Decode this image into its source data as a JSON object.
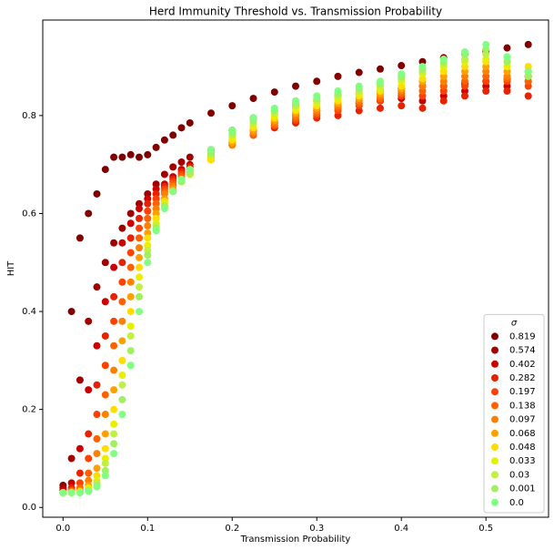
{
  "chart_data": {
    "type": "scatter",
    "title": "Herd Immunity Threshold vs. Transmission Probability",
    "x_label": "Transmission Probability",
    "y_label": "HIT",
    "legend_title": "σ",
    "legend_position": "lower right",
    "xlim": [
      -0.024,
      0.574
    ],
    "ylim": [
      -0.02,
      0.995
    ],
    "xticks": [
      {
        "value": 0,
        "label": "0.0"
      },
      0.1,
      0.2,
      0.3,
      0.4,
      0.5
    ],
    "yticks": [
      {
        "value": 0,
        "label": "0.0"
      },
      0.2,
      0.4,
      0.6,
      0.8
    ],
    "x": [
      0,
      0.01,
      0.02,
      0.03,
      0.04,
      0.05,
      0.06,
      0.07,
      0.08,
      0.09,
      0.1,
      0.11,
      0.12,
      0.13,
      0.14,
      0.15,
      0.175,
      0.2,
      0.225,
      0.25,
      0.275,
      0.3,
      0.325,
      0.35,
      0.375,
      0.4,
      0.425,
      0.45,
      0.475,
      0.5,
      0.525,
      0.55
    ],
    "series": [
      {
        "name": "0.819",
        "color": "#800000",
        "values": [
          0.045,
          0.4,
          0.55,
          0.6,
          0.64,
          0.69,
          0.715,
          0.715,
          0.72,
          0.715,
          0.72,
          0.735,
          0.75,
          0.76,
          0.775,
          0.785,
          0.805,
          0.82,
          0.835,
          0.848,
          0.86,
          0.87,
          0.88,
          0.888,
          0.895,
          0.902,
          0.91,
          0.918,
          0.925,
          0.932,
          0.938,
          0.945
        ]
      },
      {
        "name": "0.574",
        "color": "#a00000",
        "values": [
          0.04,
          0.1,
          0.26,
          0.38,
          0.45,
          0.5,
          0.54,
          0.57,
          0.6,
          0.62,
          0.64,
          0.66,
          0.68,
          0.695,
          0.705,
          0.715,
          0.73,
          0.77,
          0.795,
          0.81,
          0.82,
          0.83,
          0.84,
          0.845,
          0.85,
          0.855,
          0.86,
          0.86,
          0.865,
          0.87,
          0.875,
          0.88
        ]
      },
      {
        "name": "0.402",
        "color": "#cc0000",
        "values": [
          0.035,
          0.05,
          0.12,
          0.24,
          0.33,
          0.42,
          0.49,
          0.54,
          0.58,
          0.61,
          0.63,
          0.65,
          0.66,
          0.675,
          0.69,
          0.7,
          0.72,
          0.745,
          0.77,
          0.785,
          0.8,
          0.81,
          0.82,
          0.825,
          0.83,
          0.835,
          0.83,
          0.84,
          0.85,
          0.86,
          0.86,
          0.87
        ]
      },
      {
        "name": "0.282",
        "color": "#e62200",
        "values": [
          0.03,
          0.04,
          0.07,
          0.15,
          0.25,
          0.35,
          0.43,
          0.5,
          0.55,
          0.59,
          0.62,
          0.64,
          0.655,
          0.67,
          0.685,
          0.695,
          0.72,
          0.74,
          0.76,
          0.775,
          0.785,
          0.795,
          0.8,
          0.81,
          0.815,
          0.82,
          0.815,
          0.83,
          0.84,
          0.85,
          0.85,
          0.84
        ]
      },
      {
        "name": "0.197",
        "color": "#ff4000",
        "values": [
          0.03,
          0.035,
          0.05,
          0.1,
          0.19,
          0.29,
          0.38,
          0.46,
          0.52,
          0.57,
          0.605,
          0.63,
          0.65,
          0.665,
          0.68,
          0.69,
          0.715,
          0.74,
          0.76,
          0.78,
          0.79,
          0.8,
          0.81,
          0.82,
          0.83,
          0.84,
          0.84,
          0.85,
          0.86,
          0.87,
          0.87,
          0.86
        ]
      },
      {
        "name": "0.138",
        "color": "#ff6000",
        "values": [
          0.03,
          0.033,
          0.04,
          0.07,
          0.14,
          0.23,
          0.33,
          0.42,
          0.49,
          0.55,
          0.59,
          0.62,
          0.645,
          0.66,
          0.675,
          0.685,
          0.71,
          0.74,
          0.76,
          0.78,
          0.795,
          0.805,
          0.815,
          0.825,
          0.835,
          0.845,
          0.85,
          0.86,
          0.87,
          0.88,
          0.875,
          0.87
        ]
      },
      {
        "name": "0.097",
        "color": "#ff8000",
        "values": [
          0.03,
          0.032,
          0.035,
          0.055,
          0.11,
          0.19,
          0.28,
          0.38,
          0.46,
          0.53,
          0.575,
          0.61,
          0.64,
          0.655,
          0.67,
          0.685,
          0.71,
          0.74,
          0.765,
          0.785,
          0.8,
          0.81,
          0.82,
          0.83,
          0.84,
          0.85,
          0.86,
          0.87,
          0.88,
          0.89,
          0.88,
          0.88
        ]
      },
      {
        "name": "0.068",
        "color": "#ffa000",
        "values": [
          0.03,
          0.031,
          0.033,
          0.045,
          0.08,
          0.15,
          0.24,
          0.34,
          0.43,
          0.51,
          0.56,
          0.6,
          0.63,
          0.65,
          0.665,
          0.68,
          0.71,
          0.745,
          0.77,
          0.79,
          0.805,
          0.815,
          0.825,
          0.835,
          0.845,
          0.855,
          0.87,
          0.88,
          0.89,
          0.9,
          0.89,
          0.89
        ]
      },
      {
        "name": "0.048",
        "color": "#ffdd00",
        "values": [
          0.03,
          0.03,
          0.032,
          0.04,
          0.065,
          0.12,
          0.2,
          0.3,
          0.4,
          0.49,
          0.55,
          0.59,
          0.625,
          0.645,
          0.665,
          0.68,
          0.71,
          0.75,
          0.775,
          0.795,
          0.81,
          0.82,
          0.83,
          0.84,
          0.85,
          0.86,
          0.875,
          0.89,
          0.9,
          0.91,
          0.9,
          0.9
        ]
      },
      {
        "name": "0.033",
        "color": "#e8f000",
        "values": [
          0.03,
          0.03,
          0.031,
          0.037,
          0.055,
          0.1,
          0.17,
          0.27,
          0.37,
          0.47,
          0.535,
          0.58,
          0.62,
          0.645,
          0.665,
          0.68,
          0.715,
          0.755,
          0.78,
          0.8,
          0.815,
          0.825,
          0.835,
          0.845,
          0.855,
          0.87,
          0.885,
          0.9,
          0.91,
          0.915,
          0.9,
          0.89
        ]
      },
      {
        "name": "0.03",
        "color": "#c0f040",
        "values": [
          0.03,
          0.03,
          0.031,
          0.035,
          0.05,
          0.09,
          0.15,
          0.25,
          0.35,
          0.45,
          0.525,
          0.575,
          0.615,
          0.645,
          0.665,
          0.68,
          0.72,
          0.76,
          0.785,
          0.805,
          0.82,
          0.83,
          0.84,
          0.85,
          0.86,
          0.875,
          0.89,
          0.905,
          0.915,
          0.925,
          0.91,
          0.89
        ]
      },
      {
        "name": "0.001",
        "color": "#a0f060",
        "values": [
          0.03,
          0.03,
          0.03,
          0.034,
          0.045,
          0.075,
          0.13,
          0.22,
          0.32,
          0.43,
          0.515,
          0.57,
          0.615,
          0.645,
          0.665,
          0.685,
          0.725,
          0.765,
          0.79,
          0.81,
          0.825,
          0.835,
          0.845,
          0.855,
          0.865,
          0.88,
          0.895,
          0.91,
          0.925,
          0.935,
          0.91,
          0.88
        ]
      },
      {
        "name": "0.0",
        "color": "#80ff80",
        "values": [
          0.03,
          0.03,
          0.03,
          0.033,
          0.042,
          0.065,
          0.11,
          0.19,
          0.29,
          0.4,
          0.5,
          0.565,
          0.61,
          0.645,
          0.67,
          0.69,
          0.73,
          0.77,
          0.795,
          0.815,
          0.83,
          0.84,
          0.85,
          0.86,
          0.87,
          0.885,
          0.9,
          0.915,
          0.93,
          0.945,
          0.92,
          0.89
        ]
      }
    ]
  }
}
